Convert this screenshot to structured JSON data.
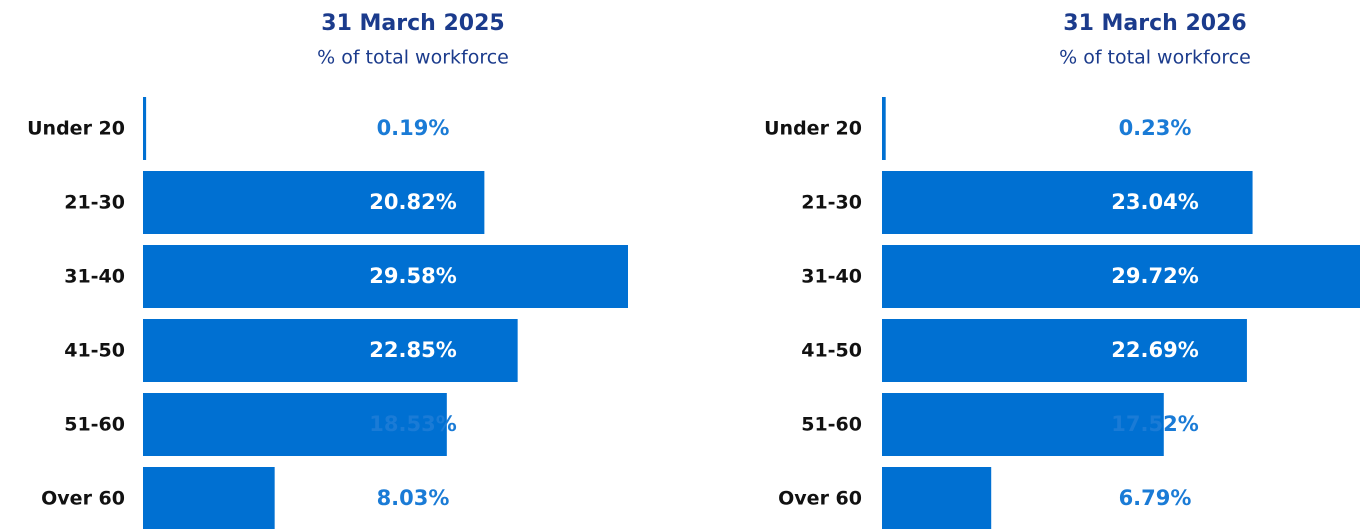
{
  "chart_data": [
    {
      "type": "bar",
      "orientation": "horizontal",
      "title": "31 March 2025",
      "subtitle": "% of total workforce",
      "categories": [
        "Under 20",
        "21-30",
        "31-40",
        "41-50",
        "51-60",
        "Over 60"
      ],
      "values": [
        0.19,
        20.82,
        29.58,
        22.85,
        18.53,
        8.03
      ],
      "value_labels": [
        "0.19%",
        "20.82%",
        "29.58%",
        "22.85%",
        "18.53%",
        "8.03%"
      ],
      "color": "#0070d2"
    },
    {
      "type": "bar",
      "orientation": "horizontal",
      "title": "31 March 2026",
      "subtitle": "% of total workforce",
      "categories": [
        "Under 20",
        "21-30",
        "31-40",
        "41-50",
        "51-60",
        "Over 60"
      ],
      "values": [
        0.23,
        23.04,
        29.72,
        22.69,
        17.52,
        6.79
      ],
      "value_labels": [
        "0.23%",
        "23.04%",
        "29.72%",
        "22.69%",
        "17.52%",
        "6.79%"
      ],
      "color": "#0070d2"
    }
  ]
}
